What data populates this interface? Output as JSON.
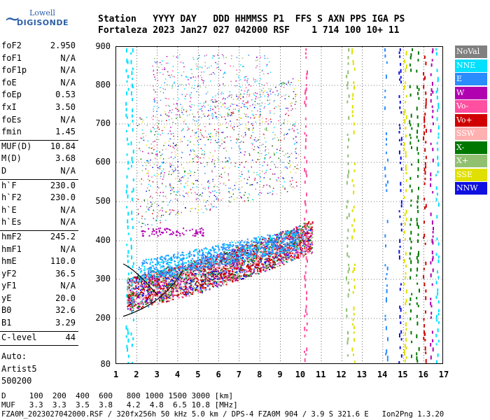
{
  "logo": {
    "line1": "Lowell",
    "line2": "DIGISONDE"
  },
  "header": {
    "line1": "Station   YYYY DAY   DDD HHMMSS P1  FFS S AXN PPS IGA PS",
    "line2": "Fortaleza 2023 Jan27 027 042000 RSF    1 714 100 10+ 11"
  },
  "params": [
    [
      [
        "foF2",
        "2.950"
      ],
      [
        "foF1",
        "N/A"
      ],
      [
        "foF1p",
        "N/A"
      ],
      [
        "foE",
        "N/A"
      ],
      [
        "foEp",
        "0.53"
      ],
      [
        "fxI",
        "3.50"
      ],
      [
        "foEs",
        "N/A"
      ],
      [
        "fmin",
        "1.45"
      ]
    ],
    [
      [
        "MUF(D)",
        "10.84"
      ],
      [
        "M(D)",
        "3.68"
      ],
      [
        "D",
        "N/A"
      ]
    ],
    [
      [
        "h`F",
        "230.0"
      ],
      [
        "h`F2",
        "230.0"
      ],
      [
        "h`E",
        "N/A"
      ],
      [
        "h`Es",
        "N/A"
      ]
    ],
    [
      [
        "hmF2",
        "245.2"
      ],
      [
        "hmF1",
        "N/A"
      ],
      [
        "hmE",
        "110.0"
      ],
      [
        "yF2",
        "36.5"
      ],
      [
        "yF1",
        "N/A"
      ],
      [
        "yE",
        "20.0"
      ],
      [
        "B0",
        "32.6"
      ],
      [
        "B1",
        "3.29"
      ]
    ],
    [
      [
        "C-level",
        "44"
      ]
    ]
  ],
  "auto_lines": [
    "Auto:",
    "Artist5",
    "500200"
  ],
  "legend": [
    {
      "label": "NoVal",
      "bg": "#808080",
      "fg": "#ffffff"
    },
    {
      "label": "NNE",
      "bg": "#00e0ff",
      "fg": "#ffffff"
    },
    {
      "label": "E",
      "bg": "#2a8cff",
      "fg": "#ffffff"
    },
    {
      "label": "W",
      "bg": "#b000b0",
      "fg": "#ffffff"
    },
    {
      "label": "Vo-",
      "bg": "#ff4fa0",
      "fg": "#ffffff"
    },
    {
      "label": "Vo+",
      "bg": "#d00000",
      "fg": "#ffffff"
    },
    {
      "label": "SSW",
      "bg": "#ffb0b0",
      "fg": "#ffffff"
    },
    {
      "label": "X-",
      "bg": "#007800",
      "fg": "#ffffff"
    },
    {
      "label": "X+",
      "bg": "#90c070",
      "fg": "#ffffff"
    },
    {
      "label": "SSE",
      "bg": "#e0e000",
      "fg": "#ffffff"
    },
    {
      "label": "NNW",
      "bg": "#1010e0",
      "fg": "#ffffff"
    }
  ],
  "axes": {
    "y_ticks": [
      "900",
      "800",
      "700",
      "600",
      "500",
      "400",
      "300",
      "200",
      "80"
    ],
    "x_ticks": [
      "1",
      "2",
      "3",
      "4",
      "5",
      "6",
      "7",
      "8",
      "9",
      "10",
      "11",
      "12",
      "13",
      "14",
      "15",
      "16",
      "17"
    ]
  },
  "footer": {
    "line1": "D     100  200  400  600   800 1000 1500 3000 [km]",
    "line2": "MUF   3.3  3.3  3.5  3.8   4.2  4.8  6.5 10.8 [MHz]",
    "line3": "FZA0M_2023027042000.RSF / 320fx256h 50 kHz 5.0 km / DPS-4 FZA0M 904 / 3.9 S 321.6 E   Ion2Png 1.3.20"
  },
  "colors": {
    "grid": "#000000",
    "trace": "#000000"
  }
}
